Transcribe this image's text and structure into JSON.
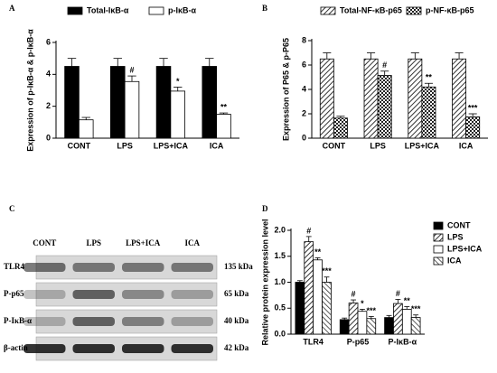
{
  "chart_data": [
    {
      "type": "bar",
      "panel_label": "A",
      "y_label": "Expression of p-IκB-α & p-IκB-α",
      "categories": [
        "CONT",
        "LPS",
        "LPS+ICA",
        "ICA"
      ],
      "series": [
        {
          "name": "Total-IκB-α",
          "color": "#000000",
          "pattern": "solid",
          "values": [
            4.5,
            4.5,
            4.5,
            4.5
          ],
          "errors": [
            0.5,
            0.5,
            0.5,
            0.5
          ],
          "annotations": [
            null,
            null,
            null,
            null
          ]
        },
        {
          "name": "p-IκB-α",
          "color": "#ffffff",
          "pattern": "solid",
          "values": [
            1.15,
            3.55,
            2.95,
            1.5
          ],
          "errors": [
            0.15,
            0.35,
            0.25,
            0.08
          ],
          "annotations": [
            null,
            "#",
            "*",
            "**"
          ]
        }
      ],
      "ylim": [
        0,
        6
      ],
      "yticks": [
        0,
        2,
        4,
        6
      ],
      "legend": "top"
    },
    {
      "type": "bar",
      "panel_label": "B",
      "y_label": "Expression of P65 & p-P65",
      "categories": [
        "CONT",
        "LPS",
        "LPS+ICA",
        "ICA"
      ],
      "series": [
        {
          "name": "Total-NF-κB-p65",
          "color": "#555555",
          "pattern": "hatch",
          "values": [
            6.5,
            6.5,
            6.5,
            6.5
          ],
          "errors": [
            0.5,
            0.5,
            0.5,
            0.5
          ],
          "annotations": [
            null,
            null,
            null,
            null
          ]
        },
        {
          "name": "p-NF-κB-p65",
          "color": "#333333",
          "pattern": "check",
          "values": [
            1.65,
            5.15,
            4.2,
            1.75
          ],
          "errors": [
            0.15,
            0.35,
            0.3,
            0.25
          ],
          "annotations": [
            null,
            "#",
            "**",
            "***"
          ]
        }
      ],
      "ylim": [
        0,
        8
      ],
      "yticks": [
        0,
        2,
        4,
        6,
        8
      ],
      "legend": "top"
    },
    {
      "type": "bar",
      "panel_label": "D",
      "y_label": "Relative protein expression level",
      "categories": [
        "TLR4",
        "P-p65",
        "P-IκB-α"
      ],
      "series": [
        {
          "name": "CONT",
          "color": "#000000",
          "pattern": "solid",
          "values": [
            1.0,
            0.28,
            0.32
          ],
          "errors": [
            0.03,
            0.03,
            0.04
          ],
          "annotations": [
            null,
            null,
            null
          ]
        },
        {
          "name": "LPS",
          "color": "#333333",
          "pattern": "hatch",
          "values": [
            1.78,
            0.6,
            0.59
          ],
          "errors": [
            0.1,
            0.06,
            0.08
          ],
          "annotations": [
            "#",
            "#",
            "#"
          ]
        },
        {
          "name": "LPS+ICA",
          "color": "#ffffff",
          "pattern": "solid",
          "values": [
            1.43,
            0.44,
            0.48
          ],
          "errors": [
            0.04,
            0.04,
            0.05
          ],
          "annotations": [
            "**",
            "*",
            "**"
          ]
        },
        {
          "name": "ICA",
          "color": "#333333",
          "pattern": "cross",
          "values": [
            1.0,
            0.3,
            0.32
          ],
          "errors": [
            0.1,
            0.04,
            0.05
          ],
          "annotations": [
            "***",
            "***",
            "***"
          ]
        }
      ],
      "ylim": [
        0,
        2
      ],
      "yticks": [
        {
          "value": 0,
          "label": "0.0"
        },
        0.5,
        {
          "value": 1,
          "label": "1.0"
        },
        1.5,
        {
          "value": 2,
          "label": "2.0"
        }
      ],
      "legend": "right"
    }
  ],
  "blot": {
    "panel_label": "C",
    "lanes": [
      "CONT",
      "LPS",
      "LPS+ICA",
      "ICA"
    ],
    "rows": [
      {
        "name": "TLR4",
        "size": "135 kDa"
      },
      {
        "name": "P-p65",
        "size": "65 kDa"
      },
      {
        "name": "P-IκB-α",
        "size": "40 kDa"
      },
      {
        "name": "β-actin",
        "size": "42 kDa"
      }
    ]
  }
}
